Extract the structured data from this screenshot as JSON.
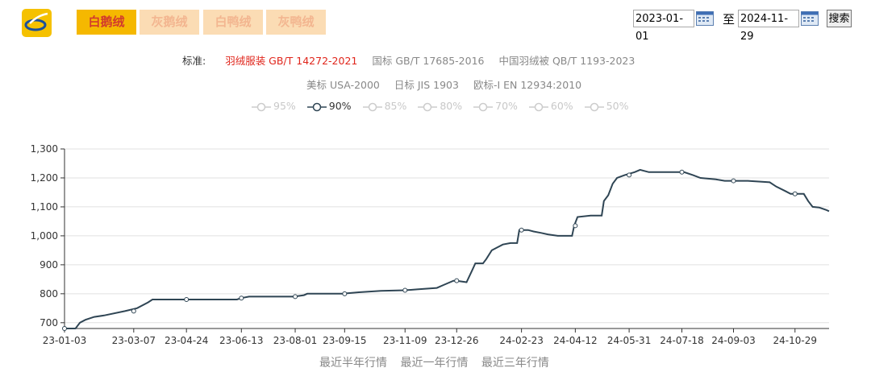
{
  "tabs": [
    {
      "label": "白鹅绒",
      "active": true
    },
    {
      "label": "灰鹅绒",
      "active": false
    },
    {
      "label": "白鸭绒",
      "active": false
    },
    {
      "label": "灰鸭绒",
      "active": false
    }
  ],
  "date_range": {
    "start": "2023-01-01",
    "to_label": "至",
    "end": "2024-11-29",
    "search_label": "搜索"
  },
  "standards": {
    "label": "标准:",
    "row1": [
      {
        "text": "羽绒服装 GB/T 14272-2021",
        "active": true
      },
      {
        "text": "国标 GB/T 17685-2016",
        "active": false
      },
      {
        "text": "中国羽绒被 QB/T 1193-2023",
        "active": false
      }
    ],
    "row2": [
      {
        "text": "美标 USA-2000",
        "active": false
      },
      {
        "text": "日标 JIS 1903",
        "active": false
      },
      {
        "text": "欧标-I EN 12934:2010",
        "active": false
      }
    ]
  },
  "legend": [
    {
      "label": "95%",
      "active": false
    },
    {
      "label": "90%",
      "active": true
    },
    {
      "label": "85%",
      "active": false
    },
    {
      "label": "80%",
      "active": false
    },
    {
      "label": "70%",
      "active": false
    },
    {
      "label": "60%",
      "active": false
    },
    {
      "label": "50%",
      "active": false
    }
  ],
  "colors": {
    "line": "#2f4554",
    "tab_active_bg": "#f5b800",
    "tab_active_text": "#d23b2c",
    "standard_active": "#e0251b"
  },
  "chart_data": {
    "type": "line",
    "series_name": "90%",
    "ylim": [
      680,
      1300
    ],
    "yticks": [
      700,
      800,
      900,
      1000,
      1100,
      1200,
      1300
    ],
    "ytick_labels": [
      "700",
      "800",
      "900",
      "1,000",
      "1,100",
      "1,200",
      "1,300"
    ],
    "xtick_labels": [
      "23-01-03",
      "23-03-07",
      "23-04-24",
      "23-06-13",
      "23-08-01",
      "23-09-15",
      "23-11-09",
      "23-12-26",
      "24-02-23",
      "24-04-12",
      "24-05-31",
      "24-07-18",
      "24-09-03",
      "24-10-29"
    ],
    "x_start": "2023-01-03",
    "x_end": "2024-11-29",
    "grid": true,
    "values": [
      [
        "2023-01-03",
        680
      ],
      [
        "2023-01-13",
        680
      ],
      [
        "2023-01-17",
        700
      ],
      [
        "2023-01-22",
        710
      ],
      [
        "2023-01-30",
        720
      ],
      [
        "2023-02-08",
        725
      ],
      [
        "2023-02-27",
        740
      ],
      [
        "2023-03-10",
        750
      ],
      [
        "2023-03-20",
        770
      ],
      [
        "2023-03-24",
        780
      ],
      [
        "2023-05-08",
        780
      ],
      [
        "2023-06-09",
        780
      ],
      [
        "2023-06-13",
        785
      ],
      [
        "2023-06-20",
        790
      ],
      [
        "2023-07-31",
        790
      ],
      [
        "2023-08-09",
        795
      ],
      [
        "2023-08-12",
        800
      ],
      [
        "2023-09-13",
        800
      ],
      [
        "2023-09-28",
        805
      ],
      [
        "2023-10-18",
        810
      ],
      [
        "2023-11-09",
        812
      ],
      [
        "2023-11-20",
        815
      ],
      [
        "2023-12-08",
        820
      ],
      [
        "2023-12-14",
        830
      ],
      [
        "2023-12-23",
        845
      ],
      [
        "2023-12-26",
        845
      ],
      [
        "2024-01-04",
        840
      ],
      [
        "2024-01-09",
        880
      ],
      [
        "2024-01-12",
        905
      ],
      [
        "2024-01-19",
        905
      ],
      [
        "2024-01-22",
        920
      ],
      [
        "2024-01-27",
        950
      ],
      [
        "2024-02-01",
        960
      ],
      [
        "2024-02-06",
        970
      ],
      [
        "2024-02-13",
        975
      ],
      [
        "2024-02-19",
        975
      ],
      [
        "2024-02-21",
        1020
      ],
      [
        "2024-02-29",
        1020
      ],
      [
        "2024-03-05",
        1015
      ],
      [
        "2024-03-12",
        1010
      ],
      [
        "2024-03-18",
        1005
      ],
      [
        "2024-03-27",
        1000
      ],
      [
        "2024-04-09",
        1000
      ],
      [
        "2024-04-11",
        1035
      ],
      [
        "2024-04-14",
        1065
      ],
      [
        "2024-04-26",
        1070
      ],
      [
        "2024-05-06",
        1070
      ],
      [
        "2024-05-08",
        1120
      ],
      [
        "2024-05-12",
        1140
      ],
      [
        "2024-05-16",
        1180
      ],
      [
        "2024-05-20",
        1200
      ],
      [
        "2024-05-27",
        1210
      ],
      [
        "2024-06-05",
        1220
      ],
      [
        "2024-06-10",
        1228
      ],
      [
        "2024-06-18",
        1220
      ],
      [
        "2024-07-20",
        1220
      ],
      [
        "2024-07-28",
        1210
      ],
      [
        "2024-08-04",
        1200
      ],
      [
        "2024-08-18",
        1195
      ],
      [
        "2024-08-26",
        1190
      ],
      [
        "2024-09-16",
        1190
      ],
      [
        "2024-10-06",
        1185
      ],
      [
        "2024-10-12",
        1170
      ],
      [
        "2024-10-20",
        1155
      ],
      [
        "2024-10-25",
        1145
      ],
      [
        "2024-11-06",
        1145
      ],
      [
        "2024-11-10",
        1120
      ],
      [
        "2024-11-14",
        1100
      ],
      [
        "2024-11-20",
        1098
      ],
      [
        "2024-11-26",
        1090
      ],
      [
        "2024-11-29",
        1085
      ]
    ],
    "markers": [
      "2023-01-03",
      "2023-03-07",
      "2023-04-24",
      "2023-06-13",
      "2023-08-01",
      "2023-09-15",
      "2023-11-09",
      "2023-12-26",
      "2024-02-23",
      "2024-04-12",
      "2024-05-31",
      "2024-07-18",
      "2024-09-03",
      "2024-10-29"
    ]
  },
  "footer_links": [
    "最近半年行情",
    "最近一年行情",
    "最近三年行情"
  ]
}
